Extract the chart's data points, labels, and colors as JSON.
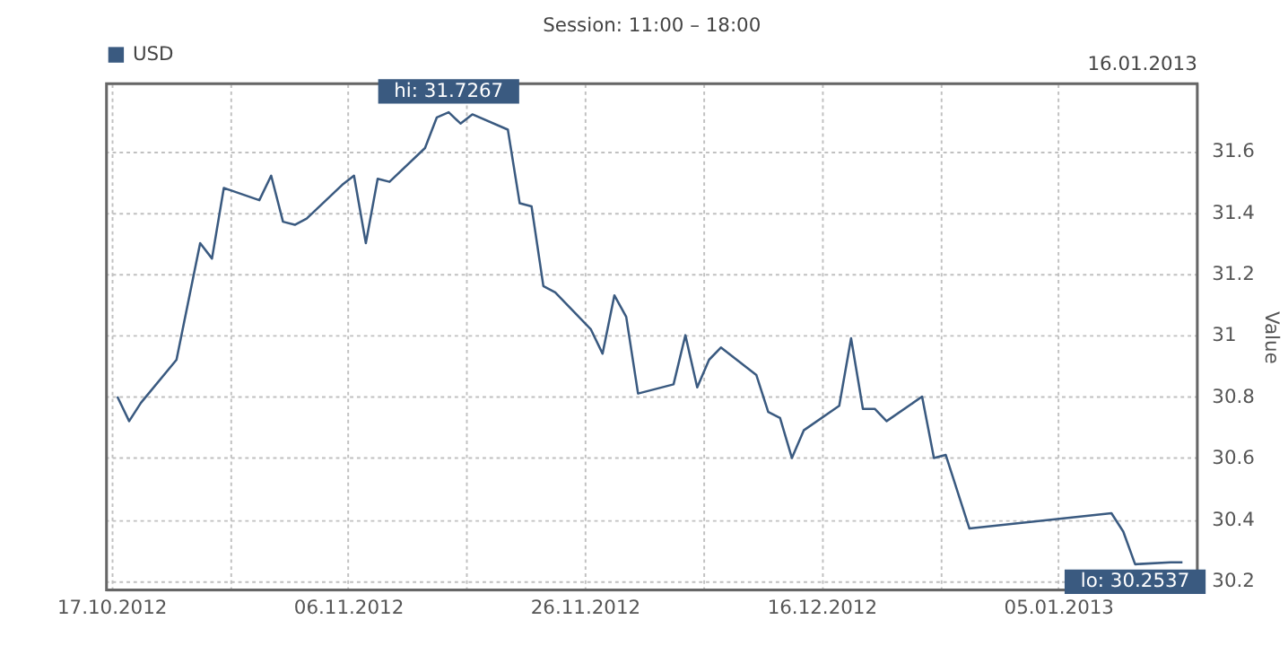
{
  "chart_data": {
    "type": "line",
    "title": "Session: 11:00 – 18:00",
    "annotations": [
      "16.01.2013",
      {
        "text": "hi: 31.7267",
        "x": "2012-11-14T12:00",
        "y": 31.7267
      },
      {
        "text": "lo: 30.2537",
        "x": "2013-01-11T12:00",
        "y": 30.2537
      }
    ],
    "ylabel": "Value",
    "x": [
      "2012-10-17T12:00",
      "2012-10-18T12:00",
      "2012-10-19T12:00",
      "2012-10-22T12:00",
      "2012-10-24T12:00",
      "2012-10-25T12:00",
      "2012-10-26T12:00",
      "2012-10-29T12:00",
      "2012-10-30T12:00",
      "2012-10-31T12:00",
      "2012-11-01T12:00",
      "2012-11-02T12:00",
      "2012-11-05T12:00",
      "2012-11-06T12:00",
      "2012-11-07T12:00",
      "2012-11-08T12:00",
      "2012-11-09T12:00",
      "2012-11-12T12:00",
      "2012-11-13T12:00",
      "2012-11-14T12:00",
      "2012-11-15T12:00",
      "2012-11-16T12:00",
      "2012-11-19T12:00",
      "2012-11-20T12:00",
      "2012-11-21T12:00",
      "2012-11-22T12:00",
      "2012-11-23T12:00",
      "2012-11-26T12:00",
      "2012-11-27T12:00",
      "2012-11-28T12:00",
      "2012-11-29T12:00",
      "2012-11-30T12:00",
      "2012-12-03T12:00",
      "2012-12-04T12:00",
      "2012-12-05T12:00",
      "2012-12-06T12:00",
      "2012-12-07T12:00",
      "2012-12-10T12:00",
      "2012-12-11T12:00",
      "2012-12-12T12:00",
      "2012-12-13T12:00",
      "2012-12-14T12:00",
      "2012-12-17T12:00",
      "2012-12-18T12:00",
      "2012-12-19T12:00",
      "2012-12-20T12:00",
      "2012-12-21T12:00",
      "2012-12-24T12:00",
      "2012-12-25T12:00",
      "2012-12-26T12:00",
      "2012-12-28T12:00",
      "2013-01-09T12:00",
      "2013-01-10T12:00",
      "2013-01-11T12:00",
      "2013-01-14T12:00",
      "2013-01-15T12:00"
    ],
    "series": [
      {
        "name": "USD",
        "color": "#3a5a80",
        "values": [
          30.8,
          30.72,
          30.78,
          30.92,
          31.3,
          31.25,
          31.48,
          31.44,
          31.52,
          31.37,
          31.36,
          31.38,
          31.49,
          31.52,
          31.3,
          31.51,
          31.5,
          31.61,
          31.71,
          31.7267,
          31.69,
          31.72,
          31.67,
          31.43,
          31.42,
          31.16,
          31.14,
          31.02,
          30.94,
          31.13,
          31.06,
          30.81,
          30.84,
          31.0,
          30.83,
          30.92,
          30.96,
          30.87,
          30.75,
          30.73,
          30.6,
          30.69,
          30.77,
          30.99,
          30.76,
          30.76,
          30.72,
          30.8,
          30.6,
          30.61,
          30.37,
          30.42,
          30.36,
          30.2537,
          30.26,
          30.26
        ]
      }
    ],
    "xlim": [
      "2012-10-16T14:00",
      "2013-01-16T18:00"
    ],
    "xticks": [
      {
        "value": "2012-10-17",
        "label": "17.10.2012"
      },
      {
        "value": "2012-10-27",
        "label": null
      },
      {
        "value": "2012-11-06",
        "label": "06.11.2012"
      },
      {
        "value": "2012-11-16",
        "label": null
      },
      {
        "value": "2012-11-26",
        "label": "26.11.2012"
      },
      {
        "value": "2012-12-06",
        "label": null
      },
      {
        "value": "2012-12-16",
        "label": "16.12.2012"
      },
      {
        "value": "2012-12-26",
        "label": null
      },
      {
        "value": "2013-01-05",
        "label": "05.01.2013"
      }
    ],
    "ylim": [
      30.17,
      31.82
    ],
    "yticks": [
      30.2,
      30.4,
      30.6,
      30.8,
      31,
      31.2,
      31.4,
      31.6
    ],
    "grid": true,
    "legend": "top left",
    "line_style": "solid",
    "marker": "none"
  }
}
